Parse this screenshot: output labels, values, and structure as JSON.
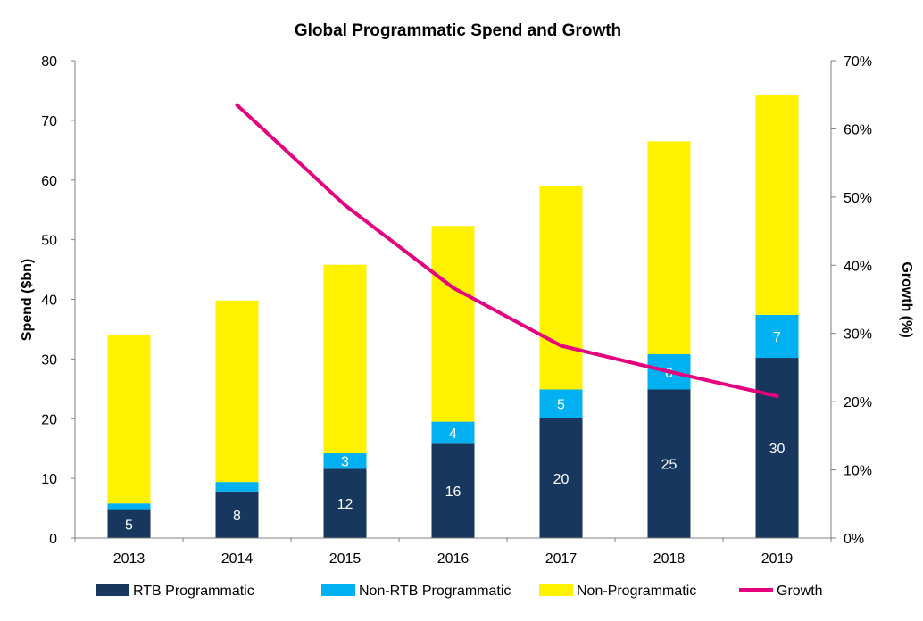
{
  "chart_data": {
    "type": "bar",
    "title": "Global Programmatic Spend and Growth",
    "categories": [
      "2013",
      "2014",
      "2015",
      "2016",
      "2017",
      "2018",
      "2019"
    ],
    "ylabel": "Spend ($bn)",
    "y2label": "Growth (%)",
    "ylim": [
      0,
      80
    ],
    "y2lim": [
      0,
      70
    ],
    "yticks": [
      "0",
      "10",
      "20",
      "30",
      "40",
      "50",
      "60",
      "70",
      "80"
    ],
    "y2ticks": [
      "0%",
      "10%",
      "20%",
      "30%",
      "40%",
      "50%",
      "60%",
      "70%"
    ],
    "stacked": true,
    "grid": false,
    "legend_position": "bottom",
    "series": [
      {
        "name": "RTB Programmatic",
        "type": "bar",
        "color": "#17375e",
        "values": [
          4.7,
          7.8,
          11.6,
          15.8,
          20.1,
          24.9,
          30.2
        ],
        "labels": [
          "5",
          "8",
          "12",
          "16",
          "20",
          "25",
          "30"
        ]
      },
      {
        "name": "Non-RTB Programmatic",
        "type": "bar",
        "color": "#00b0f0",
        "values": [
          1.1,
          1.6,
          2.6,
          3.7,
          4.8,
          5.9,
          7.2
        ],
        "labels": [
          "",
          "",
          "3",
          "4",
          "5",
          "6",
          "7"
        ]
      },
      {
        "name": "Non-Programmatic",
        "type": "bar",
        "color": "#fff200",
        "values": [
          28.3,
          30.4,
          31.6,
          32.8,
          34.1,
          35.7,
          36.9
        ],
        "labels": [
          "",
          "",
          "",
          "",
          "",
          "",
          ""
        ]
      },
      {
        "name": "Growth",
        "type": "line",
        "axis": "right",
        "color": "#e5007e",
        "values": [
          null,
          63.5,
          48.8,
          36.7,
          28.2,
          24.4,
          20.8
        ]
      }
    ]
  }
}
